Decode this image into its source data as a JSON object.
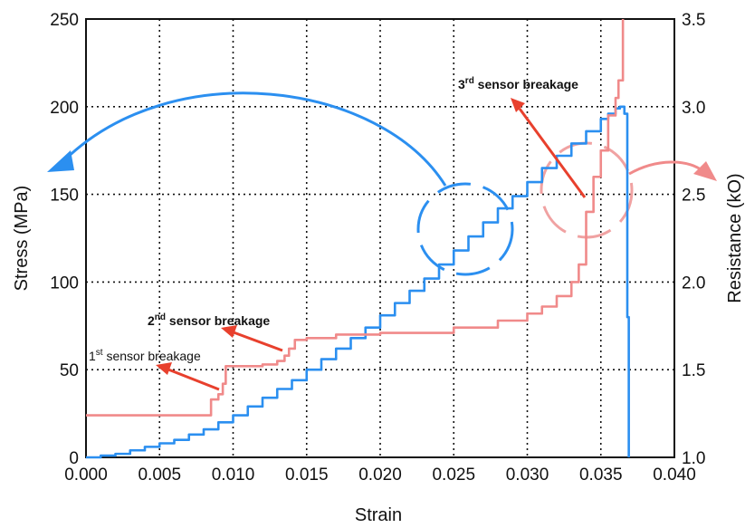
{
  "chart_data": {
    "type": "line",
    "xlabel": "Strain",
    "ylabel_left": "Stress (MPa)",
    "ylabel_right": "Resistance (kO)",
    "xlim": [
      0,
      0.04
    ],
    "ylim_left": [
      0,
      250
    ],
    "ylim_right": [
      1.0,
      3.5
    ],
    "x_ticks": [
      "0.000",
      "0.005",
      "0.010",
      "0.015",
      "0.020",
      "0.025",
      "0.030",
      "0.035",
      "0.040"
    ],
    "y_left_ticks": [
      "0",
      "50",
      "100",
      "150",
      "200",
      "250"
    ],
    "y_right_ticks": [
      "1.0",
      "1.5",
      "2.0",
      "2.5",
      "3.0",
      "3.5"
    ],
    "grid": true,
    "colors": {
      "stress": "#2b8ff0",
      "resistance": "#f08a8a",
      "arrow": "#e8402d"
    },
    "series": [
      {
        "axis": "left",
        "x": [
          0.0,
          0.001,
          0.002,
          0.003,
          0.004,
          0.005,
          0.006,
          0.007,
          0.008,
          0.009,
          0.01,
          0.011,
          0.012,
          0.013,
          0.014,
          0.015,
          0.016,
          0.017,
          0.018,
          0.019,
          0.02,
          0.021,
          0.022,
          0.023,
          0.024,
          0.025,
          0.026,
          0.027,
          0.028,
          0.029,
          0.03,
          0.031,
          0.032,
          0.033,
          0.034,
          0.035,
          0.0355,
          0.036,
          0.0363,
          0.0366,
          0.0368,
          0.0369,
          0.0369
        ],
        "values": [
          0,
          1,
          2,
          4,
          6,
          8,
          10,
          13,
          16,
          20,
          24,
          29,
          34,
          39,
          44,
          50,
          56,
          62,
          68,
          74,
          81,
          88,
          95,
          102,
          110,
          118,
          126,
          134,
          142,
          149,
          157,
          165,
          172,
          179,
          186,
          193,
          196,
          199,
          200,
          196,
          80,
          60,
          0
        ]
      },
      {
        "axis": "right",
        "x": [
          0.0,
          0.0085,
          0.0085,
          0.009,
          0.0093,
          0.0095,
          0.01,
          0.012,
          0.013,
          0.0135,
          0.0138,
          0.0142,
          0.015,
          0.017,
          0.02,
          0.025,
          0.028,
          0.03,
          0.031,
          0.032,
          0.033,
          0.0335,
          0.034,
          0.0345,
          0.035,
          0.0355,
          0.036,
          0.0362,
          0.0365,
          0.0365
        ],
        "values": [
          1.24,
          1.24,
          1.33,
          1.36,
          1.42,
          1.52,
          1.52,
          1.53,
          1.55,
          1.58,
          1.62,
          1.67,
          1.68,
          1.7,
          1.71,
          1.74,
          1.78,
          1.82,
          1.86,
          1.92,
          2.0,
          2.1,
          2.4,
          2.6,
          2.75,
          2.95,
          3.05,
          3.15,
          3.25,
          3.5
        ]
      }
    ],
    "annotations": {
      "first": {
        "superscript": "st",
        "prefix": "1",
        "text": " sensor breakage"
      },
      "second": {
        "superscript": "nd",
        "prefix": "2",
        "text": " sensor breakage"
      },
      "third": {
        "superscript": "rd",
        "prefix": "3",
        "text": " sensor breakage"
      }
    }
  }
}
